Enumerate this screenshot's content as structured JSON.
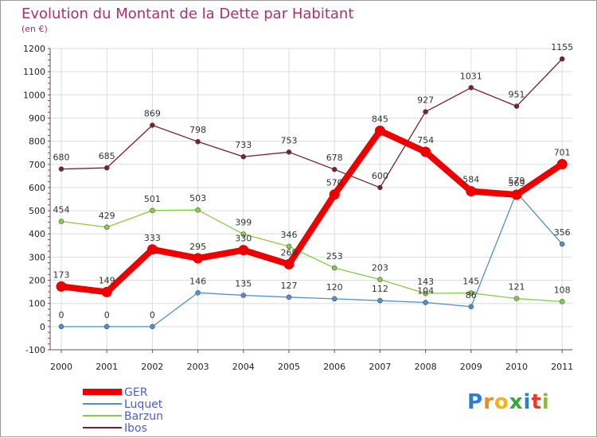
{
  "chart_data": {
    "type": "line",
    "title": "Evolution du Montant de la Dette par Habitant",
    "subtitle": "(en €)",
    "x": [
      "2000",
      "2001",
      "2002",
      "2003",
      "2004",
      "2005",
      "2006",
      "2007",
      "2008",
      "2009",
      "2010",
      "2011"
    ],
    "ylim": [
      -100,
      1200
    ],
    "yticks": [
      -100,
      0,
      100,
      200,
      300,
      400,
      500,
      600,
      700,
      800,
      900,
      1000,
      1100,
      1200
    ],
    "grid": true,
    "legend_position": "bottom-left",
    "series": [
      {
        "name": "Ibos",
        "color": "#7a1f2b",
        "values": [
          680,
          685,
          869,
          798,
          733,
          753,
          678,
          600,
          927,
          1031,
          951,
          1155
        ]
      },
      {
        "name": "Barzun",
        "color": "#88cc44",
        "values": [
          454,
          429,
          501,
          503,
          399,
          346,
          253,
          203,
          143,
          145,
          121,
          108
        ]
      },
      {
        "name": "Luquet",
        "color": "#4f8fcf",
        "values": [
          0,
          0,
          0,
          146,
          135,
          127,
          120,
          112,
          104,
          86,
          579,
          356
        ]
      },
      {
        "name": "GER",
        "color": "#ee0000",
        "values": [
          173,
          149,
          333,
          295,
          330,
          269,
          570,
          845,
          754,
          584,
          569,
          701
        ]
      }
    ]
  },
  "logo": {
    "letters": [
      "P",
      "r",
      "o",
      "x",
      "i",
      "t",
      "i"
    ],
    "colors": [
      "#2a7fd4",
      "#f08a1c",
      "#f0b41c",
      "#3aa53a",
      "#2a7fd4",
      "#e83a2a",
      "#8ac02a"
    ]
  }
}
